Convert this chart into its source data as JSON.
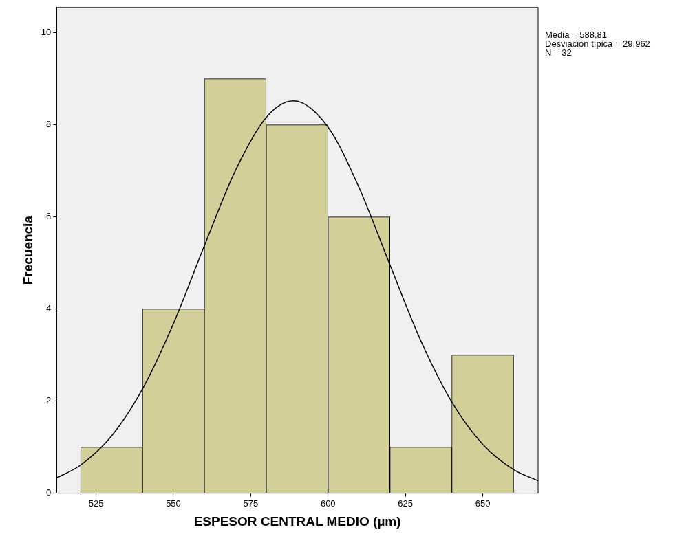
{
  "chart_data": {
    "type": "histogram",
    "xlabel": "ESPESOR CENTRAL MEDIO (µm)",
    "ylabel": "Frecuencia",
    "bins": [
      520,
      540,
      560,
      580,
      600,
      620,
      640,
      660
    ],
    "values": [
      1,
      4,
      9,
      8,
      6,
      1,
      3
    ],
    "color": "#d3cf99",
    "series": [
      {
        "type": "line",
        "color": "#000000",
        "x": [
          512.25,
          520,
          530,
          540,
          550,
          560,
          570,
          580,
          588.81,
          600,
          610,
          620,
          630,
          640,
          650,
          660,
          667.9
        ],
        "values": [
          0.33,
          0.61,
          1.24,
          2.26,
          3.68,
          5.37,
          7.0,
          8.16,
          8.52,
          7.95,
          6.64,
          4.96,
          3.31,
          1.98,
          1.06,
          0.51,
          0.27
        ]
      }
    ],
    "xlim": [
      512.25,
      667.9
    ],
    "xticks": [
      525,
      550,
      575,
      600,
      625,
      650
    ],
    "ylim": [
      0,
      10.55
    ],
    "yticks": [
      0,
      2,
      4,
      6,
      8,
      10
    ],
    "marker": "none",
    "line_style": "solid",
    "legend": false,
    "annotations": [
      "Media = 588,81",
      "Desviación típica = 29,962",
      "N = 32"
    ]
  }
}
